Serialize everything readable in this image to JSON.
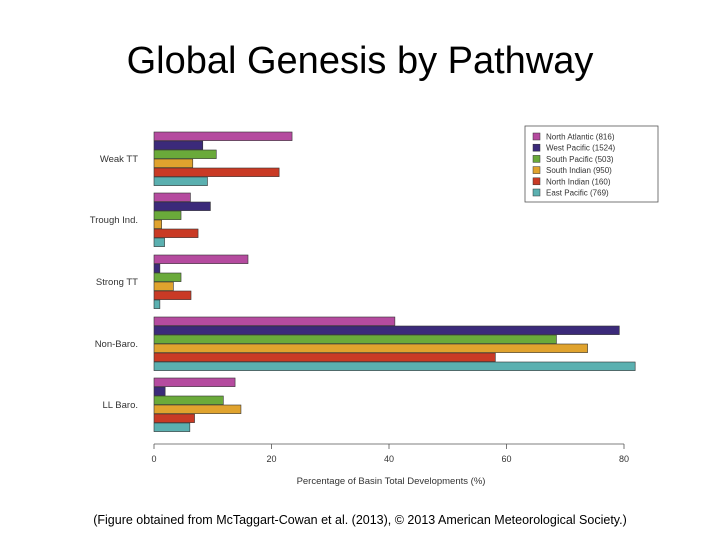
{
  "slide": {
    "title": "Global Genesis by Pathway",
    "caption": "(Figure obtained from McTaggart-Cowan et al. (2013), © 2013 American Meteorological Society.)"
  },
  "chart_data": {
    "type": "bar",
    "orientation": "horizontal",
    "categories": [
      "Weak TT",
      "Trough Ind.",
      "Strong TT",
      "Non-Baro.",
      "LL Baro."
    ],
    "series": [
      {
        "name": "North Atlantic (816)",
        "color": "#b54b9f",
        "values": [
          23.5,
          6.2,
          16,
          41,
          13.8
        ]
      },
      {
        "name": "West Pacific (1524)",
        "color": "#3b2a7a",
        "values": [
          8.3,
          9.6,
          1,
          79.2,
          1.9
        ]
      },
      {
        "name": "South Pacific (503)",
        "color": "#6aaa3a",
        "values": [
          10.6,
          4.6,
          4.6,
          68.5,
          11.8
        ]
      },
      {
        "name": "South Indian (950)",
        "color": "#e0a32e",
        "values": [
          6.6,
          1.3,
          3.3,
          73.8,
          14.8
        ]
      },
      {
        "name": "North Indian (160)",
        "color": "#c93a25",
        "values": [
          21.3,
          7.5,
          6.3,
          58.1,
          6.9
        ]
      },
      {
        "name": "East Pacific (769)",
        "color": "#5bb0b0",
        "values": [
          9.1,
          1.8,
          1,
          81.9,
          6.1
        ]
      }
    ],
    "xlabel": "Percentage of Basin Total Developments (%)",
    "ylabel": "",
    "xlim": [
      0,
      85
    ],
    "xticks": [
      0,
      20,
      40,
      60,
      80
    ],
    "grid": false,
    "legend_position": "top-right"
  }
}
